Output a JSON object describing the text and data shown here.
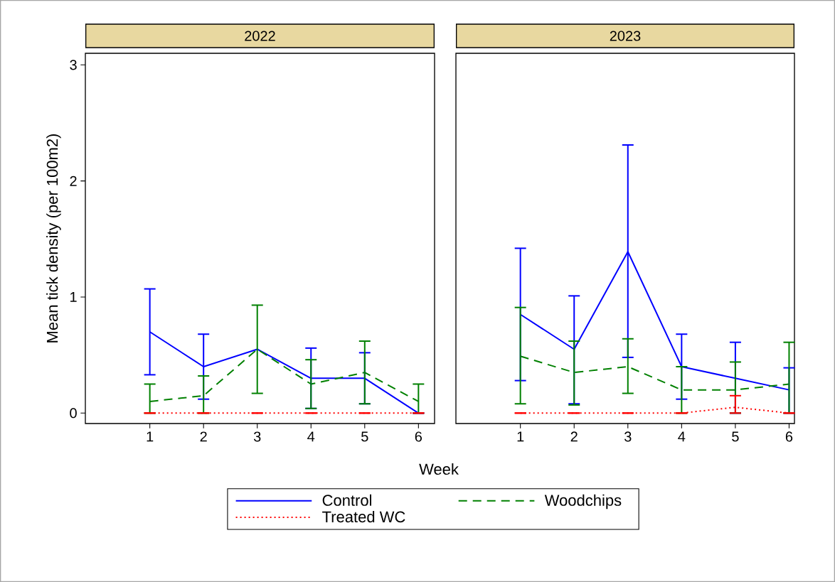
{
  "chart_data": [
    {
      "type": "line",
      "title": "2022",
      "xlabel": "Week",
      "ylabel": "Mean tick density (per 100m2)",
      "x": [
        1,
        2,
        3,
        4,
        5,
        6
      ],
      "xlim": [
        -0.2,
        6.3
      ],
      "ylim": [
        -0.09,
        3.1
      ],
      "xticks": [
        1,
        2,
        3,
        4,
        5,
        6
      ],
      "yticks": [
        0,
        1,
        2,
        3
      ],
      "legend": "bottom",
      "marker": "none",
      "grid": false,
      "series": [
        {
          "name": "Control",
          "color": "#0000ff",
          "line_style": "solid",
          "values": [
            0.7,
            0.4,
            0.55,
            0.3,
            0.3,
            0
          ],
          "errors": [
            [
              0.33,
              1.07
            ],
            [
              0.12,
              0.68
            ],
            null,
            [
              0.04,
              0.56
            ],
            [
              0.08,
              0.52
            ],
            [
              0,
              0
            ]
          ]
        },
        {
          "name": "Woodchips",
          "color": "#008000",
          "line_style": "dashed",
          "values": [
            0.1,
            0.15,
            0.55,
            0.25,
            0.35,
            0.1
          ],
          "errors": [
            [
              0,
              0.25
            ],
            [
              0,
              0.32
            ],
            [
              0.17,
              0.93
            ],
            [
              0.04,
              0.46
            ],
            [
              0.08,
              0.62
            ],
            [
              0,
              0.25
            ]
          ]
        },
        {
          "name": "Treated WC",
          "color": "#ff0000",
          "line_style": "dotted",
          "values": [
            0,
            0,
            0,
            0,
            0,
            0
          ],
          "errors": [
            [
              0,
              0
            ],
            [
              0,
              0
            ],
            [
              0,
              0
            ],
            [
              0,
              0
            ],
            [
              0,
              0
            ],
            [
              0,
              0
            ]
          ]
        }
      ]
    },
    {
      "type": "line",
      "title": "2023",
      "x": [
        1,
        2,
        3,
        4,
        5,
        6
      ],
      "xlim": [
        -0.2,
        6.1
      ],
      "ylim": [
        -0.09,
        3.1
      ],
      "xticks": [
        1,
        2,
        3,
        4,
        5,
        6
      ],
      "yticks": [
        0,
        1,
        2,
        3
      ],
      "tick_labels": "x",
      "marker": "none",
      "grid": false,
      "series": [
        {
          "color": "#0000ff",
          "line_style": "solid",
          "values": [
            0.85,
            0.55,
            1.39,
            0.4,
            0.3,
            0.2
          ],
          "errors": [
            [
              0.28,
              1.42
            ],
            [
              0.08,
              1.01
            ],
            [
              0.48,
              2.31
            ],
            [
              0.12,
              0.68
            ],
            [
              0,
              0.61
            ],
            [
              0,
              0.39
            ]
          ]
        },
        {
          "color": "#008000",
          "line_style": "dashed",
          "values": [
            0.49,
            0.35,
            0.4,
            0.2,
            0.2,
            0.25
          ],
          "errors": [
            [
              0.08,
              0.91
            ],
            [
              0.07,
              0.62
            ],
            [
              0.17,
              0.64
            ],
            [
              0,
              0.4
            ],
            [
              0,
              0.44
            ],
            [
              0,
              0.61
            ]
          ]
        },
        {
          "color": "#ff0000",
          "line_style": "dotted",
          "values": [
            0,
            0,
            0,
            0,
            0.05,
            0
          ],
          "errors": [
            [
              0,
              0
            ],
            [
              0,
              0
            ],
            [
              0,
              0
            ],
            [
              0,
              0
            ],
            [
              0,
              0.15
            ],
            [
              0,
              0
            ]
          ]
        }
      ]
    }
  ]
}
